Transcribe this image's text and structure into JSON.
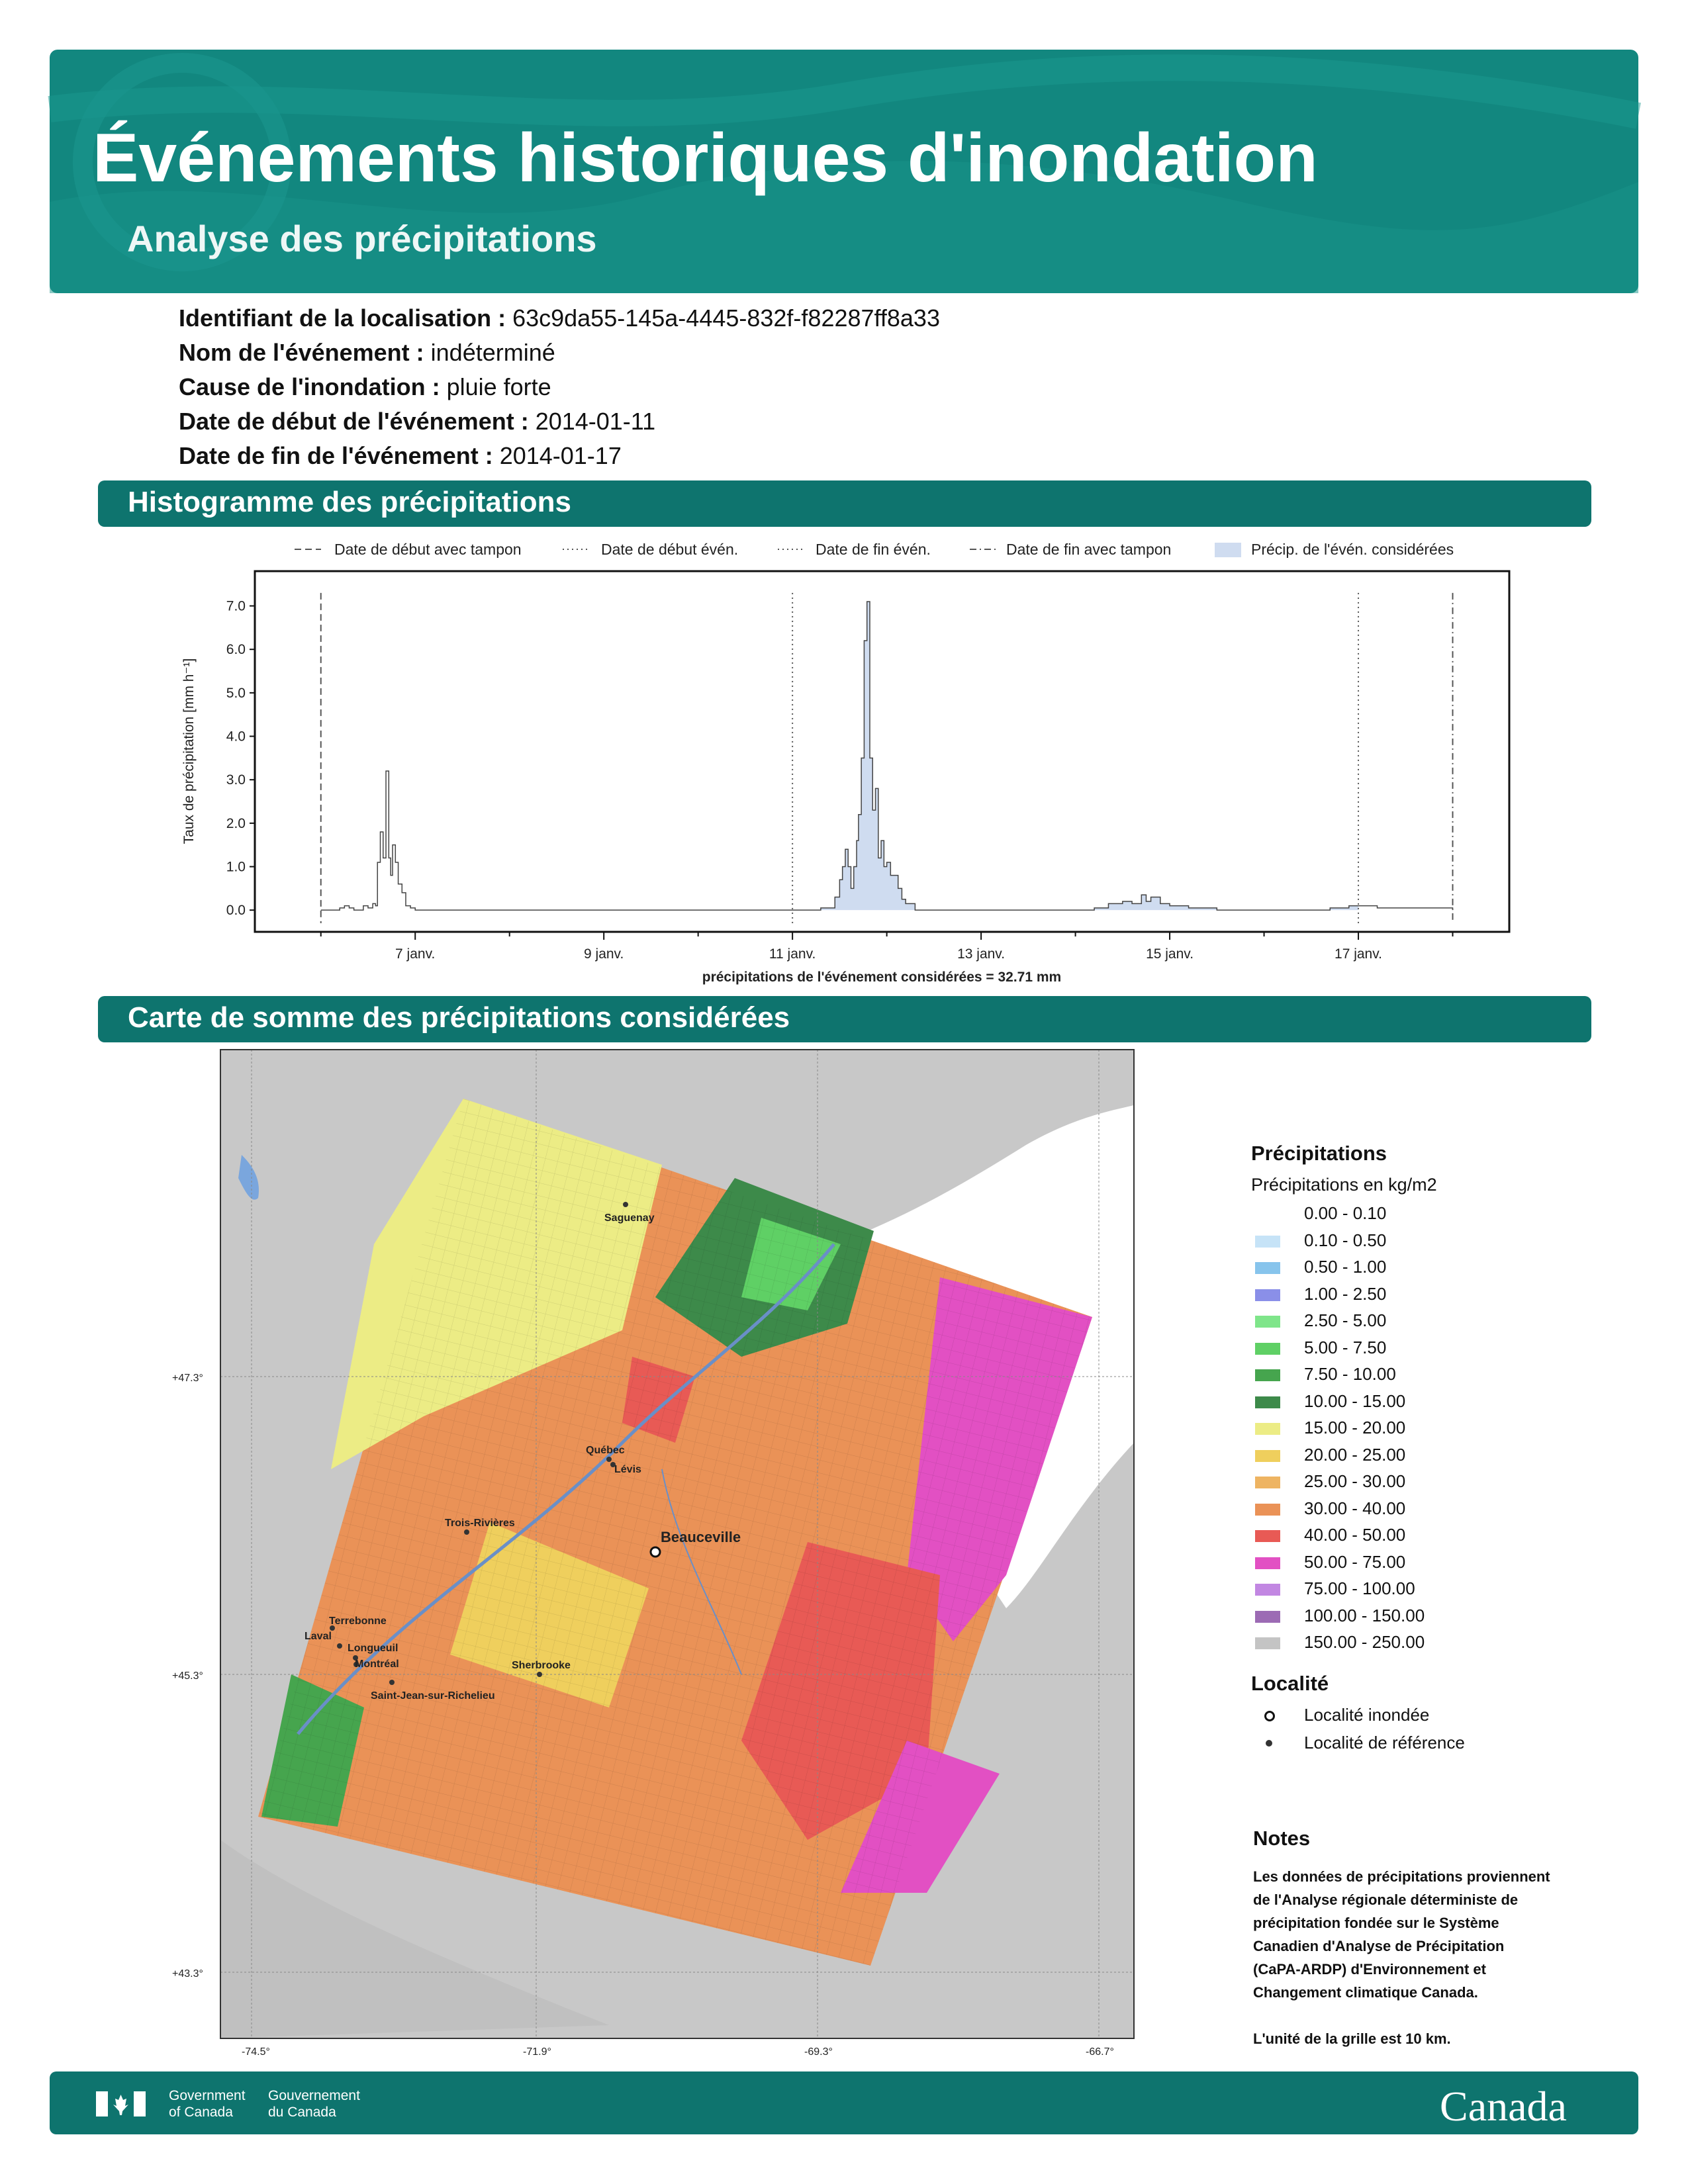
{
  "header": {
    "title": "Événements historiques d'inondation",
    "subtitle": "Analyse des précipitations"
  },
  "info": [
    {
      "label": "Identifiant de la localisation :",
      "value": "63c9da55-145a-4445-832f-f82287ff8a33"
    },
    {
      "label": "Nom de l'événement :",
      "value": "indéterminé"
    },
    {
      "label": "Cause de l'inondation :",
      "value": "pluie forte"
    },
    {
      "label": "Date de début de l'événement :",
      "value": "2014-01-11"
    },
    {
      "label": "Date de fin de l'événement :",
      "value": "2014-01-17"
    }
  ],
  "sections": {
    "histogram": "Histogramme des précipitations",
    "map": "Carte de somme des précipitations considérées"
  },
  "chart_data": {
    "type": "area",
    "title": "",
    "ylabel": "Taux de précipitation [mm h⁻¹]",
    "xlabel": "précipitations de l'événement considérées = 32.71 mm",
    "ylim": [
      -0.5,
      7.8
    ],
    "xlim": [
      5.3,
      18.6
    ],
    "x_unit": "janvier 2014 (jour)",
    "yticks": [
      "0.0",
      "1.0",
      "2.0",
      "3.0",
      "4.0",
      "5.0",
      "6.0",
      "7.0"
    ],
    "xticks": [
      {
        "day": 7,
        "label": "7 janv."
      },
      {
        "day": 9,
        "label": "9 janv."
      },
      {
        "day": 11,
        "label": "11 janv."
      },
      {
        "day": 13,
        "label": "13 janv."
      },
      {
        "day": 15,
        "label": "15 janv."
      },
      {
        "day": 17,
        "label": "17 janv."
      }
    ],
    "legend": [
      {
        "label": "Date de début avec tampon",
        "style": "dashed"
      },
      {
        "label": "Date de début évén.",
        "style": "dotted"
      },
      {
        "label": "Date de fin évén.",
        "style": "dotted"
      },
      {
        "label": "Date de fin avec tampon",
        "style": "dashdot"
      },
      {
        "label": "Précip. de l'évén. considérées",
        "style": "fill"
      }
    ],
    "vlines": {
      "buffer_start": 6.0,
      "event_start": 11.0,
      "event_end": 17.0,
      "buffer_end": 18.0
    },
    "shade_range": [
      11.0,
      17.0
    ],
    "series": [
      {
        "points": [
          [
            6.0,
            0.0
          ],
          [
            6.2,
            0.05
          ],
          [
            6.25,
            0.1
          ],
          [
            6.3,
            0.05
          ],
          [
            6.35,
            0.0
          ],
          [
            6.45,
            0.1
          ],
          [
            6.5,
            0.05
          ],
          [
            6.55,
            0.15
          ],
          [
            6.58,
            0.1
          ],
          [
            6.6,
            1.1
          ],
          [
            6.63,
            1.8
          ],
          [
            6.66,
            1.2
          ],
          [
            6.69,
            3.2
          ],
          [
            6.72,
            1.2
          ],
          [
            6.74,
            0.8
          ],
          [
            6.76,
            1.5
          ],
          [
            6.79,
            1.1
          ],
          [
            6.82,
            0.6
          ],
          [
            6.86,
            0.4
          ],
          [
            6.9,
            0.1
          ],
          [
            6.95,
            0.05
          ],
          [
            7.0,
            0.0
          ],
          [
            7.5,
            0.0
          ],
          [
            8.0,
            0.0
          ],
          [
            9.0,
            0.0
          ],
          [
            10.0,
            0.0
          ],
          [
            11.0,
            0.0
          ],
          [
            11.3,
            0.05
          ],
          [
            11.45,
            0.3
          ],
          [
            11.5,
            0.7
          ],
          [
            11.53,
            1.0
          ],
          [
            11.56,
            1.4
          ],
          [
            11.59,
            1.0
          ],
          [
            11.62,
            0.5
          ],
          [
            11.65,
            1.0
          ],
          [
            11.68,
            1.6
          ],
          [
            11.7,
            2.2
          ],
          [
            11.73,
            3.5
          ],
          [
            11.76,
            6.2
          ],
          [
            11.79,
            7.1
          ],
          [
            11.82,
            3.5
          ],
          [
            11.85,
            2.3
          ],
          [
            11.88,
            2.8
          ],
          [
            11.91,
            1.2
          ],
          [
            11.94,
            1.6
          ],
          [
            11.97,
            1.0
          ],
          [
            12.0,
            1.1
          ],
          [
            12.04,
            0.8
          ],
          [
            12.08,
            0.8
          ],
          [
            12.12,
            0.5
          ],
          [
            12.16,
            0.25
          ],
          [
            12.2,
            0.15
          ],
          [
            12.3,
            0.0
          ],
          [
            13.0,
            0.0
          ],
          [
            14.0,
            0.0
          ],
          [
            14.2,
            0.05
          ],
          [
            14.35,
            0.15
          ],
          [
            14.5,
            0.2
          ],
          [
            14.6,
            0.15
          ],
          [
            14.7,
            0.35
          ],
          [
            14.75,
            0.2
          ],
          [
            14.8,
            0.3
          ],
          [
            14.9,
            0.15
          ],
          [
            15.0,
            0.1
          ],
          [
            15.2,
            0.05
          ],
          [
            15.5,
            0.0
          ],
          [
            16.5,
            0.0
          ],
          [
            16.7,
            0.05
          ],
          [
            16.9,
            0.1
          ],
          [
            17.0,
            0.1
          ],
          [
            17.2,
            0.05
          ],
          [
            17.5,
            0.05
          ],
          [
            18.0,
            0.0
          ]
        ]
      }
    ]
  },
  "map": {
    "axis_labels": {
      "lat": [
        "+47.3°",
        "+45.3°",
        "+43.3°"
      ],
      "lon": [
        "-74.5°",
        "-71.9°",
        "-69.3°",
        "-66.7°"
      ]
    },
    "cities_reference": [
      "Saguenay",
      "Québec",
      "Lévis",
      "Trois-Rivières",
      "Terrebonne",
      "Laval",
      "Longueuil",
      "Montréal",
      "Sherbrooke",
      "Saint-Jean-sur-Richelieu"
    ],
    "city_flooded": "Beauceville"
  },
  "legend": {
    "title": "Précipitations",
    "subtitle": "Précipitations en kg/m2",
    "classes": [
      {
        "label": "0.00 - 0.10",
        "color": "#ffffff"
      },
      {
        "label": "0.10 - 0.50",
        "color": "#c6e3f7"
      },
      {
        "label": "0.50 - 1.00",
        "color": "#87c4ec"
      },
      {
        "label": "1.00 - 2.50",
        "color": "#8a8fe8"
      },
      {
        "label": "2.50 - 5.00",
        "color": "#7fe58a"
      },
      {
        "label": "5.00 - 7.50",
        "color": "#5fd065"
      },
      {
        "label": "7.50 - 10.00",
        "color": "#46a54e"
      },
      {
        "label": "10.00 - 15.00",
        "color": "#3d8a4a"
      },
      {
        "label": "15.00 - 20.00",
        "color": "#ecec85"
      },
      {
        "label": "20.00 - 25.00",
        "color": "#efcf5d"
      },
      {
        "label": "25.00 - 30.00",
        "color": "#eeb462"
      },
      {
        "label": "30.00 - 40.00",
        "color": "#ea9257"
      },
      {
        "label": "40.00 - 50.00",
        "color": "#e85a55"
      },
      {
        "label": "50.00 - 75.00",
        "color": "#e250c3"
      },
      {
        "label": "75.00 - 100.00",
        "color": "#c287e2"
      },
      {
        "label": "100.00 - 150.00",
        "color": "#9c6bb4"
      },
      {
        "label": "150.00 - 250.00",
        "color": "#c4c4c4"
      }
    ],
    "locality_title": "Localité",
    "locality_items": [
      {
        "label": "Localité inondée",
        "marker": "hollow-circle"
      },
      {
        "label": "Localité de référence",
        "marker": "dot"
      }
    ]
  },
  "notes": {
    "title": "Notes",
    "lines": [
      "Les données de précipitations proviennent",
      "de l'Analyse régionale déterministe de",
      "précipitation fondée sur le Système",
      "Canadien d'Analyse de Précipitation",
      "(CaPA-ARDP) d'Environnement et",
      "Changement climatique Canada."
    ],
    "grid_unit": "L'unité de la grille est 10 km."
  },
  "footer": {
    "gov_en_1": "Government",
    "gov_en_2": "of Canada",
    "gov_fr_1": "Gouvernement",
    "gov_fr_2": "du Canada",
    "wordmark": "Canada"
  },
  "colors": {
    "header_teal": "#12877f",
    "bar_teal": "#0e746e",
    "shade_fill": "#cfdcf0",
    "land_gray": "#c8c8c8"
  }
}
